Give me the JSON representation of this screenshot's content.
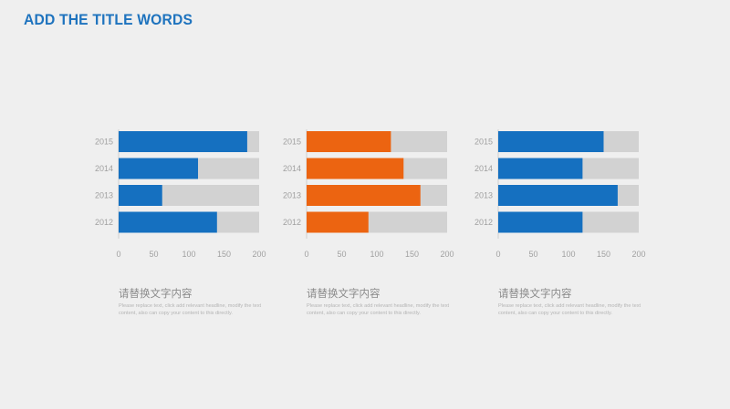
{
  "slide": {
    "title": "ADD THE TITLE WORDS",
    "title_color": "#1e73be"
  },
  "colors": {
    "track": "#d2d2d2",
    "axis_line": "#cfcfcf"
  },
  "chart_data": [
    {
      "type": "bar",
      "orientation": "horizontal",
      "categories": [
        "2015",
        "2014",
        "2013",
        "2012"
      ],
      "values": [
        183,
        113,
        62,
        140
      ],
      "xlim": [
        0,
        200
      ],
      "xticks": [
        "0",
        "50",
        "100",
        "150",
        "200"
      ],
      "bar_color": "#1570c0",
      "caption_title": "请替换文字内容",
      "caption_body": "Please replace text, click add relevant headline, modify the text content, also can copy your content to this directly."
    },
    {
      "type": "bar",
      "orientation": "horizontal",
      "categories": [
        "2015",
        "2014",
        "2013",
        "2012"
      ],
      "values": [
        120,
        138,
        162,
        88
      ],
      "xlim": [
        0,
        200
      ],
      "xticks": [
        "0",
        "50",
        "100",
        "150",
        "200"
      ],
      "bar_color": "#ec6411",
      "caption_title": "请替换文字内容",
      "caption_body": "Please replace text, click add relevant headline, modify the text content, also can copy your content to this directly."
    },
    {
      "type": "bar",
      "orientation": "horizontal",
      "categories": [
        "2015",
        "2014",
        "2013",
        "2012"
      ],
      "values": [
        150,
        120,
        170,
        120
      ],
      "xlim": [
        0,
        200
      ],
      "xticks": [
        "0",
        "50",
        "100",
        "150",
        "200"
      ],
      "bar_color": "#1570c0",
      "caption_title": "请替换文字内容",
      "caption_body": "Please replace text, click add relevant headline, modify the text content, also can copy your content to this directly."
    }
  ]
}
